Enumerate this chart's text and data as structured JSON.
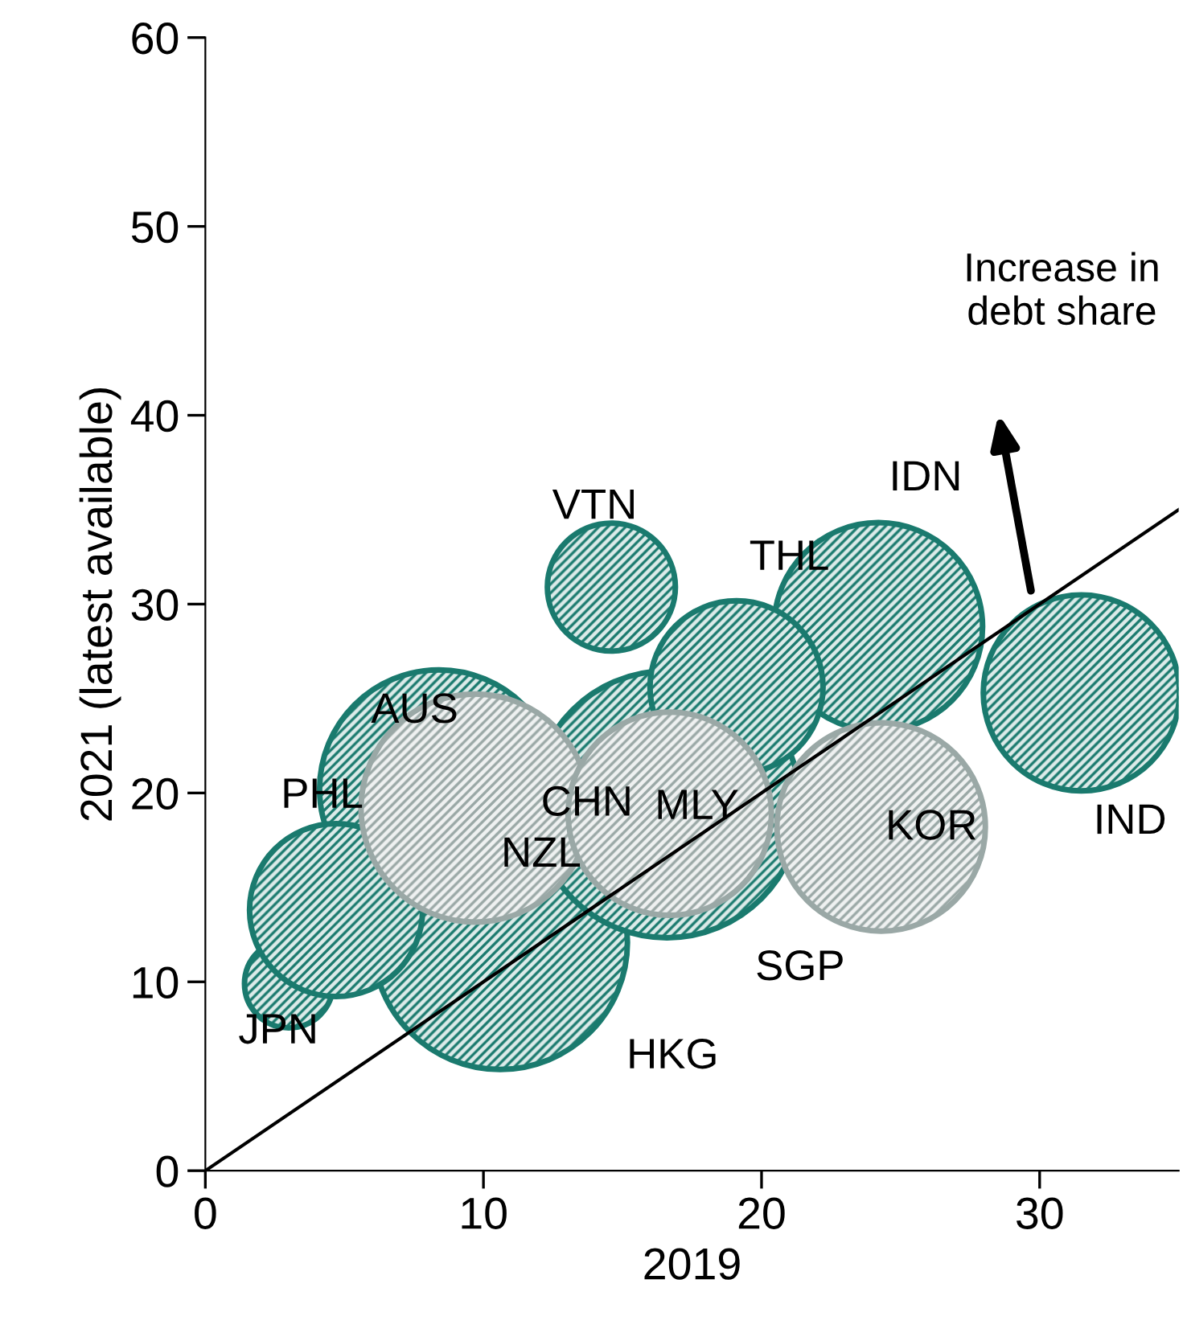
{
  "chart_data": {
    "type": "bubble",
    "xlabel": "2019",
    "ylabel": "2021 (latest available)",
    "xlim": [
      0,
      35
    ],
    "ylim": [
      0,
      60
    ],
    "xticks": [
      0,
      10,
      20,
      30
    ],
    "yticks": [
      0,
      10,
      20,
      30,
      40,
      50,
      60
    ],
    "grid": false,
    "legend": false,
    "series": [
      {
        "x": [
          8.4,
          10.6,
          3.0,
          4.7,
          16.6,
          24.2,
          19.1,
          14.6,
          31.5,
          9.7,
          16.7,
          24.3
        ],
        "values": [
          20.2,
          12.1,
          9.9,
          13.8,
          19.4,
          28.8,
          25.6,
          30.9,
          25.3,
          19.2,
          18.9,
          18.2
        ],
        "sizes": [
          0.8,
          0.91,
          0.11,
          0.42,
          1,
          0.61,
          0.42,
          0.23,
          0.54,
          0.73,
          0.58,
          0.61
        ],
        "colors": [
          "#1a7a6e",
          "#1a7a6e",
          "#1a7a6e",
          "#1a7a6e",
          "#1a7a6e",
          "#1a7a6e",
          "#1a7a6e",
          "#1a7a6e",
          "#1a7a6e",
          "#9aa8a6",
          "#9aa8a6",
          "#9aa8a6"
        ]
      },
      {
        "type": "line",
        "x": [
          0,
          35
        ],
        "values": [
          0,
          35
        ],
        "color": "#000000"
      }
    ],
    "annotations": [
      "VTN",
      "IDN",
      "THL",
      "AUS",
      "PHL",
      "CHN",
      "MLY",
      "NZL",
      "KOR",
      "IND",
      "SGP",
      "JPN",
      "HKG",
      "Increase in\ndebt share"
    ]
  }
}
